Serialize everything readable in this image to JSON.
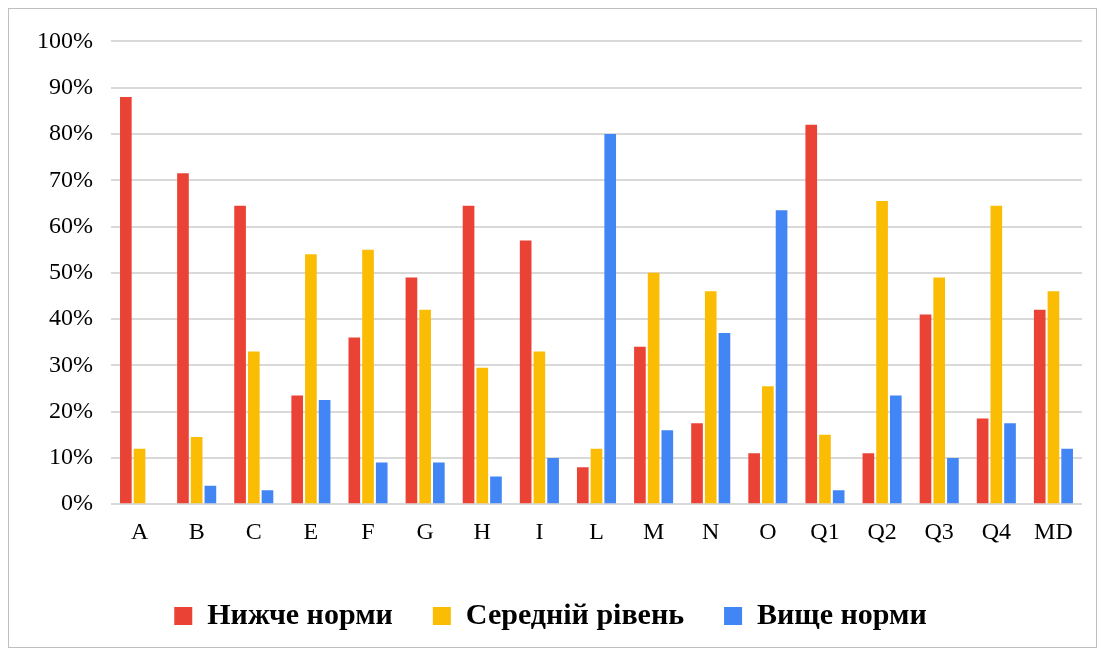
{
  "chart_data": {
    "type": "bar",
    "categories": [
      "A",
      "B",
      "C",
      "E",
      "F",
      "G",
      "H",
      "I",
      "L",
      "M",
      "N",
      "O",
      "Q1",
      "Q2",
      "Q3",
      "Q4",
      "MD"
    ],
    "series": [
      {
        "name": "Нижче норми",
        "color": "#ea4335",
        "values": [
          88,
          71.5,
          64.5,
          23.5,
          36,
          49,
          64.5,
          57,
          8,
          34,
          17.5,
          11,
          82,
          11,
          41,
          18.5,
          42
        ]
      },
      {
        "name": "Середній рівень",
        "color": "#fbbc04",
        "values": [
          12,
          14.5,
          33,
          54,
          55,
          42,
          29.5,
          33,
          12,
          50,
          46,
          25.5,
          15,
          65.5,
          49,
          64.5,
          46
        ]
      },
      {
        "name": "Вище норми",
        "color": "#4285f4",
        "values": [
          0,
          4,
          3,
          22.5,
          9,
          9,
          6,
          10,
          80,
          16,
          37,
          63.5,
          3,
          23.5,
          10,
          17.5,
          12
        ]
      }
    ],
    "ylim": [
      0,
      100
    ],
    "yticks": [
      {
        "value": 0,
        "label": "0%"
      },
      {
        "value": 10,
        "label": "10%"
      },
      {
        "value": 20,
        "label": "20%"
      },
      {
        "value": 30,
        "label": "30%"
      },
      {
        "value": 40,
        "label": "40%"
      },
      {
        "value": 50,
        "label": "50%"
      },
      {
        "value": 60,
        "label": "60%"
      },
      {
        "value": 70,
        "label": "70%"
      },
      {
        "value": 80,
        "label": "80%"
      },
      {
        "value": 90,
        "label": "90%"
      },
      {
        "value": 100,
        "label": "100%"
      }
    ],
    "grid": "y",
    "legend": "bottom"
  }
}
